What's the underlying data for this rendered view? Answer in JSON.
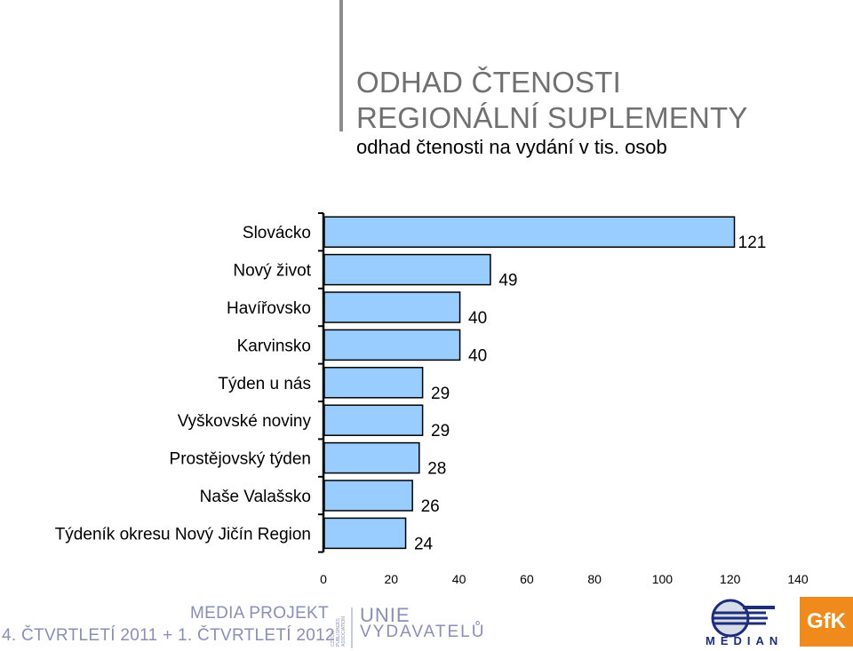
{
  "header": {
    "title_line1": "ODHAD ČTENOSTI",
    "title_line2": "REGIONÁLNÍ SUPLEMENTY",
    "subtitle": "odhad čtenosti na vydání v tis. osob"
  },
  "chart_data": {
    "type": "bar",
    "orientation": "horizontal",
    "title": "ODHAD ČTENOSTI REGIONÁLNÍ SUPLEMENTY",
    "subtitle": "odhad čtenosti na vydání v tis. osob",
    "categories": [
      "Slovácko",
      "Nový život",
      "Havířovsko",
      "Karvinsko",
      "Týden u nás",
      "Vyškovské noviny",
      "Prostějovský týden",
      "Naše Valašsko",
      "Týdeník okresu Nový Jičín Region"
    ],
    "values": [
      121,
      49,
      40,
      40,
      29,
      29,
      28,
      26,
      24
    ],
    "value_labels": [
      "121",
      "49",
      "40",
      "40",
      "29",
      "29",
      "28",
      "26",
      "24"
    ],
    "xlim": [
      0,
      140
    ],
    "xticks": [
      "0",
      "20",
      "40",
      "60",
      "80",
      "100",
      "120",
      "140"
    ],
    "xlabel": "",
    "ylabel": "",
    "bar_color": "#99ccff",
    "grid": false
  },
  "footer": {
    "media_projekt": "MEDIA PROJEKT",
    "quarter": "4. ČTVRTLETÍ 2011 + 1. ČTVRTLETÍ 2012",
    "cpa": "CZECH PUBLISHERS ASSOCIATION",
    "unie_line1": "UNIE",
    "unie_line2": "VYDAVATELŮ",
    "median": "MEDIAN",
    "gfk": "GfK",
    "accent_color": "#8a8fb5",
    "gfk_color": "#f08a1c"
  }
}
